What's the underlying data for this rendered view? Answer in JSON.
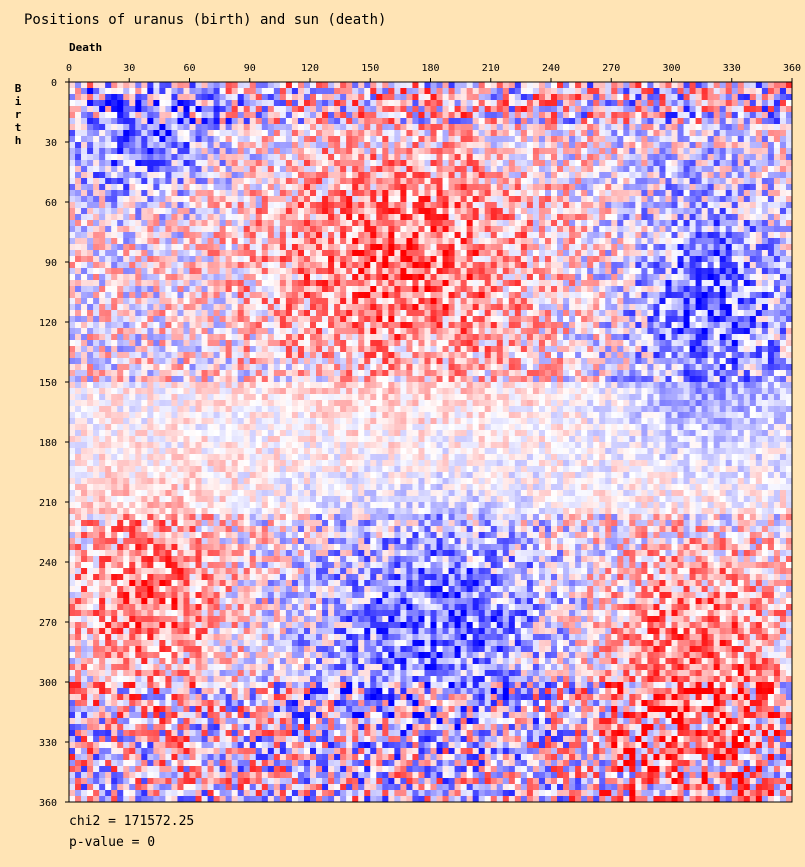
{
  "chart_data": {
    "type": "heatmap",
    "title": "Positions of uranus (birth) and sun (death)",
    "xlabel": "Death",
    "ylabel": "Birth",
    "x_range": [
      0,
      360
    ],
    "y_range": [
      0,
      360
    ],
    "x_ticks": [
      "0",
      "30",
      "60",
      "90",
      "120",
      "150",
      "180",
      "210",
      "240",
      "270",
      "300",
      "330",
      "360"
    ],
    "y_ticks": [
      "0",
      "30",
      "60",
      "90",
      "120",
      "150",
      "180",
      "210",
      "240",
      "270",
      "300",
      "330",
      "360"
    ],
    "colors": {
      "high": "#ff0000",
      "neutral": "#ffffff",
      "low": "#0000ff"
    },
    "regions": [
      {
        "x": [
          0,
          75
        ],
        "y": [
          0,
          60
        ],
        "tendency": "blue"
      },
      {
        "x": [
          90,
          240
        ],
        "y": [
          30,
          150
        ],
        "tendency": "red"
      },
      {
        "x": [
          275,
          360
        ],
        "y": [
          50,
          180
        ],
        "tendency": "blue"
      },
      {
        "x": [
          120,
          250
        ],
        "y": [
          220,
          320
        ],
        "tendency": "blue"
      },
      {
        "x": [
          255,
          360
        ],
        "y": [
          230,
          360
        ],
        "tendency": "red"
      },
      {
        "x": [
          0,
          80
        ],
        "y": [
          210,
          300
        ],
        "tendency": "red"
      }
    ],
    "stats": {
      "chi2": "chi2 = 171572.25",
      "p_value": "p-value = 0"
    }
  }
}
